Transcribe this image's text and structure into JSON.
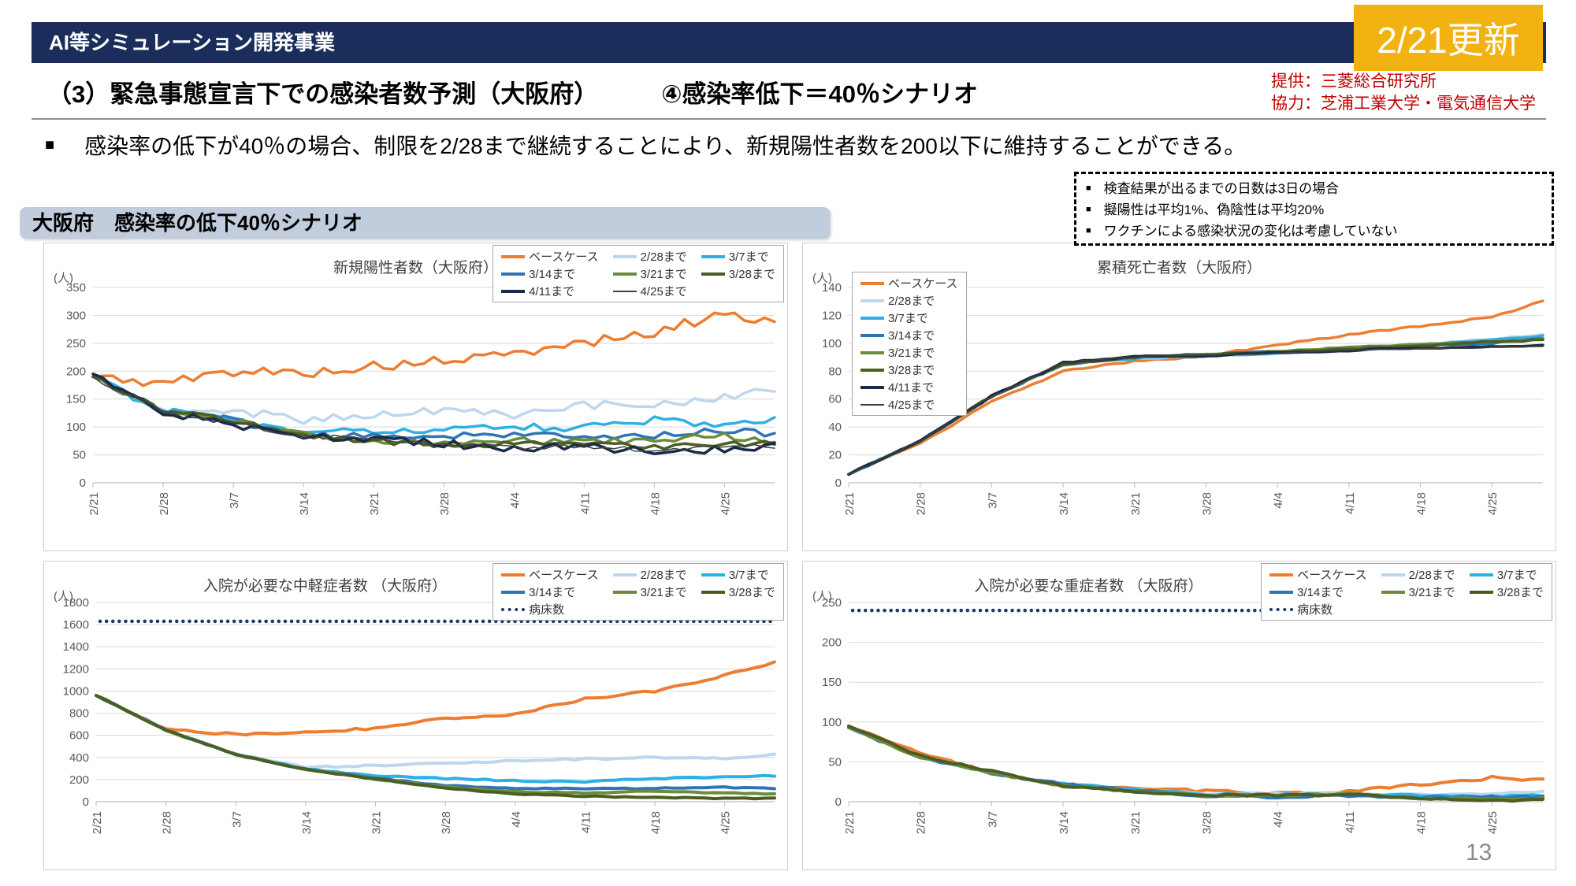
{
  "banner": {
    "label": "AI等シミュレーション開発事業",
    "update_badge": "2/21更新"
  },
  "header": {
    "title_left": "（3）緊急事態宣言下での感染者数予測（大阪府）",
    "title_right": "④感染率低下＝40％シナリオ",
    "credit_line1": "提供：三菱総合研究所",
    "credit_line2": "協力：芝浦工業大学・電気通信大学"
  },
  "summary": {
    "marker": "■",
    "text": "感染率の低下が40％の場合、制限を2/28まで継続することにより、新規陽性者数を200以下に維持することができる。"
  },
  "scenario_label": "大阪府　感染率の低下40％シナリオ",
  "assumptions": {
    "marker": "■",
    "items": [
      "検査結果が出るまでの日数は3日の場合",
      "擬陽性は平均1%、偽陰性は平均20%",
      "ワクチンによる感染状況の変化は考慮していない"
    ]
  },
  "page_number": "13",
  "colors": {
    "banner_navy": "#1B2D5B",
    "badge_yellow": "#F2B211",
    "credit_red": "#C00000",
    "scenario_box": "#C1CCDC",
    "grid": "#D9D9D9",
    "axis_text": "#595959"
  },
  "chart_data": [
    {
      "type": "line",
      "title": "新規陽性者数（大阪府）",
      "unit_label": "(人)",
      "ylim": [
        0,
        350
      ],
      "ytick_step": 50,
      "x_ticks": [
        "2/21",
        "2/28",
        "3/7",
        "3/14",
        "3/21",
        "3/28",
        "4/4",
        "4/11",
        "4/18",
        "4/25"
      ],
      "x_tick_days": [
        0,
        7,
        14,
        21,
        28,
        35,
        42,
        49,
        56,
        63
      ],
      "x_anchor_days": [
        0,
        7,
        14,
        21,
        28,
        35,
        42,
        49,
        56,
        63,
        68
      ],
      "legend": {
        "position": "top-right",
        "columns": 3
      },
      "series": [
        {
          "name": "ベースケース",
          "color": "#ED7D31",
          "width": 3.5,
          "jitter": 9,
          "values": [
            190,
            178,
            200,
            197,
            208,
            218,
            230,
            252,
            268,
            305,
            288
          ]
        },
        {
          "name": "2/28まで",
          "color": "#BDD7EE",
          "width": 3.5,
          "jitter": 8,
          "values": [
            190,
            128,
            130,
            112,
            122,
            128,
            122,
            138,
            142,
            152,
            165
          ]
        },
        {
          "name": "3/7まで",
          "color": "#2EB0E4",
          "width": 3.5,
          "jitter": 7,
          "values": [
            190,
            128,
            114,
            85,
            95,
            92,
            102,
            98,
            112,
            100,
            112
          ]
        },
        {
          "name": "3/14まで",
          "color": "#2E75B6",
          "width": 3.5,
          "jitter": 6,
          "values": [
            190,
            128,
            112,
            85,
            82,
            85,
            88,
            80,
            85,
            95,
            85
          ]
        },
        {
          "name": "3/21まで",
          "color": "#6D8B3D",
          "width": 3.5,
          "jitter": 6,
          "values": [
            190,
            128,
            112,
            85,
            75,
            72,
            76,
            72,
            78,
            84,
            70
          ]
        },
        {
          "name": "3/28まで",
          "color": "#4A5E23",
          "width": 3.5,
          "jitter": 5,
          "values": [
            190,
            128,
            112,
            85,
            75,
            66,
            70,
            70,
            64,
            70,
            70
          ]
        },
        {
          "name": "4/11まで",
          "color": "#1B2A49",
          "width": 3.5,
          "jitter": 7,
          "values": [
            195,
            126,
            104,
            84,
            78,
            70,
            60,
            66,
            55,
            60,
            64
          ]
        },
        {
          "name": "4/25まで",
          "color": "#404040",
          "width": 1.5,
          "jitter": 5,
          "values": [
            190,
            127,
            106,
            84,
            76,
            70,
            64,
            64,
            60,
            64,
            64
          ]
        }
      ]
    },
    {
      "type": "line",
      "title": "累積死亡者数（大阪府）",
      "unit_label": "(人)",
      "ylim": [
        0,
        140
      ],
      "ytick_step": 20,
      "monotonic": true,
      "x_ticks": [
        "2/21",
        "2/28",
        "3/7",
        "3/14",
        "3/21",
        "3/28",
        "4/4",
        "4/11",
        "4/18",
        "4/25"
      ],
      "x_tick_days": [
        0,
        7,
        14,
        21,
        28,
        35,
        42,
        49,
        56,
        63
      ],
      "x_anchor_days": [
        0,
        7,
        14,
        21,
        28,
        35,
        42,
        49,
        56,
        63,
        68
      ],
      "legend": {
        "position": "inside-left",
        "columns": 1
      },
      "series": [
        {
          "name": "ベースケース",
          "color": "#ED7D31",
          "width": 3.5,
          "jitter": 0.7,
          "values": [
            6,
            28,
            58,
            80,
            87,
            91,
            99,
            106,
            112,
            119,
            130
          ]
        },
        {
          "name": "2/28まで",
          "color": "#BDD7EE",
          "width": 3.5,
          "jitter": 0.7,
          "values": [
            6,
            30,
            62,
            85,
            89,
            91,
            93,
            96,
            99,
            103,
            106
          ]
        },
        {
          "name": "3/7まで",
          "color": "#2EB0E4",
          "width": 3.5,
          "jitter": 0.7,
          "values": [
            6,
            30,
            62,
            85,
            89,
            91,
            93,
            96,
            99,
            102,
            105
          ]
        },
        {
          "name": "3/14まで",
          "color": "#2E75B6",
          "width": 3.5,
          "jitter": 0.7,
          "values": [
            6,
            30,
            62,
            85,
            90,
            92,
            94,
            96,
            98,
            100,
            104
          ]
        },
        {
          "name": "3/21まで",
          "color": "#6D8B3D",
          "width": 3.5,
          "jitter": 0.7,
          "values": [
            6,
            30,
            62,
            85,
            90,
            92,
            94,
            97,
            99,
            101,
            103
          ]
        },
        {
          "name": "3/28まで",
          "color": "#4A5E23",
          "width": 3.5,
          "jitter": 0.7,
          "values": [
            6,
            30,
            62,
            85,
            90,
            92,
            94,
            96,
            98,
            101,
            102
          ]
        },
        {
          "name": "4/11まで",
          "color": "#1B2A49",
          "width": 3.5,
          "jitter": 0.7,
          "values": [
            6,
            30,
            62,
            86,
            90,
            91,
            93,
            95,
            96,
            97,
            98
          ]
        },
        {
          "name": "4/25まで",
          "color": "#404040",
          "width": 1.5,
          "jitter": 0.7,
          "values": [
            6,
            30,
            62,
            86,
            90,
            91,
            93,
            95,
            96,
            97,
            97
          ]
        }
      ]
    },
    {
      "type": "line",
      "title": "入院が必要な中軽症者数 （大阪府）",
      "unit_label": "(人)",
      "ylim": [
        0,
        1800
      ],
      "ytick_step": 200,
      "x_ticks": [
        "2/21",
        "2/28",
        "3/7",
        "3/14",
        "3/21",
        "3/28",
        "4/4",
        "4/11",
        "4/18",
        "4/25"
      ],
      "x_tick_days": [
        0,
        7,
        14,
        21,
        28,
        35,
        42,
        49,
        56,
        63
      ],
      "x_anchor_days": [
        0,
        7,
        14,
        21,
        28,
        35,
        42,
        49,
        56,
        63,
        68
      ],
      "legend": {
        "position": "top-right",
        "columns": 3
      },
      "bed_series": {
        "name": "病床数",
        "value": 1630,
        "color": "#1F3864"
      },
      "series": [
        {
          "name": "ベースケース",
          "color": "#ED7D31",
          "width": 4,
          "jitter": 10,
          "values": [
            960,
            650,
            610,
            625,
            665,
            755,
            790,
            930,
            1000,
            1140,
            1260
          ]
        },
        {
          "name": "2/28まで",
          "color": "#BDD7EE",
          "width": 4,
          "jitter": 8,
          "values": [
            960,
            648,
            435,
            310,
            330,
            345,
            370,
            385,
            400,
            392,
            430
          ]
        },
        {
          "name": "3/7まで",
          "color": "#2EB0E4",
          "width": 4,
          "jitter": 6,
          "values": [
            960,
            648,
            425,
            295,
            235,
            210,
            190,
            180,
            210,
            225,
            235
          ]
        },
        {
          "name": "3/14まで",
          "color": "#2E75B6",
          "width": 4,
          "jitter": 5,
          "values": [
            960,
            648,
            425,
            293,
            215,
            145,
            120,
            118,
            120,
            130,
            120
          ]
        },
        {
          "name": "3/21まで",
          "color": "#6D8B3D",
          "width": 4,
          "jitter": 5,
          "values": [
            960,
            648,
            425,
            293,
            205,
            130,
            90,
            80,
            95,
            80,
            70
          ]
        },
        {
          "name": "3/28まで",
          "color": "#4A5E23",
          "width": 4,
          "jitter": 5,
          "values": [
            960,
            648,
            425,
            293,
            205,
            125,
            70,
            50,
            40,
            30,
            30
          ]
        }
      ]
    },
    {
      "type": "line",
      "title": "入院が必要な重症者数 （大阪府）",
      "unit_label": "(人)",
      "ylim": [
        0,
        250
      ],
      "ytick_step": 50,
      "x_ticks": [
        "2/21",
        "2/28",
        "3/7",
        "3/14",
        "3/21",
        "3/28",
        "4/4",
        "4/11",
        "4/18",
        "4/25"
      ],
      "x_tick_days": [
        0,
        7,
        14,
        21,
        28,
        35,
        42,
        49,
        56,
        63
      ],
      "x_anchor_days": [
        0,
        7,
        14,
        21,
        28,
        35,
        42,
        49,
        56,
        63,
        68
      ],
      "legend": {
        "position": "top-right",
        "columns": 3
      },
      "bed_series": {
        "name": "病床数",
        "value": 240,
        "color": "#1F3864"
      },
      "series": [
        {
          "name": "ベースケース",
          "color": "#ED7D31",
          "width": 4,
          "jitter": 2,
          "values": [
            95,
            60,
            36,
            20,
            18,
            13,
            11,
            13,
            22,
            30,
            27
          ]
        },
        {
          "name": "2/28まで",
          "color": "#BDD7EE",
          "width": 4,
          "jitter": 1.5,
          "values": [
            93,
            56,
            36,
            22,
            15,
            10,
            10,
            10,
            9,
            10,
            12
          ]
        },
        {
          "name": "3/7まで",
          "color": "#2EB0E4",
          "width": 4,
          "jitter": 1.5,
          "values": [
            93,
            56,
            36,
            22,
            15,
            9,
            9,
            9,
            8,
            7,
            8
          ]
        },
        {
          "name": "3/14まで",
          "color": "#2E75B6",
          "width": 4,
          "jitter": 1.5,
          "values": [
            93,
            56,
            36,
            22,
            14,
            7,
            6,
            8,
            5,
            6,
            6
          ]
        },
        {
          "name": "3/21まで",
          "color": "#6D8B3D",
          "width": 4,
          "jitter": 1.5,
          "values": [
            93,
            56,
            36,
            20,
            13,
            8,
            8,
            9,
            5,
            4,
            4
          ]
        },
        {
          "name": "3/28まで",
          "color": "#4A5E23",
          "width": 4,
          "jitter": 1.5,
          "values": [
            95,
            58,
            38,
            20,
            13,
            8,
            8,
            9,
            4,
            2,
            2
          ]
        }
      ]
    }
  ]
}
